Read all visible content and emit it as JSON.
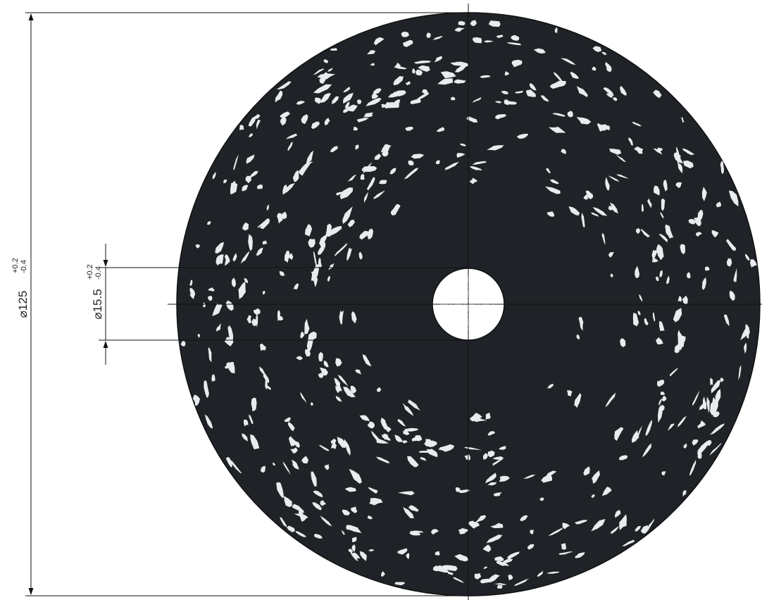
{
  "drawing": {
    "colors": {
      "disc": "#1f2327",
      "speckle": "#e9ebee",
      "bore": "#ffffff",
      "line": "#111111",
      "background": "#ffffff"
    },
    "outer_diameter": {
      "symbol": "⌀",
      "value": "125",
      "tol_upper": "+0.2",
      "tol_lower": "-0.4"
    },
    "bore_diameter": {
      "symbol": "⌀",
      "value": "15.5",
      "tol_upper": "+0.2",
      "tol_lower": "-0.4"
    }
  }
}
